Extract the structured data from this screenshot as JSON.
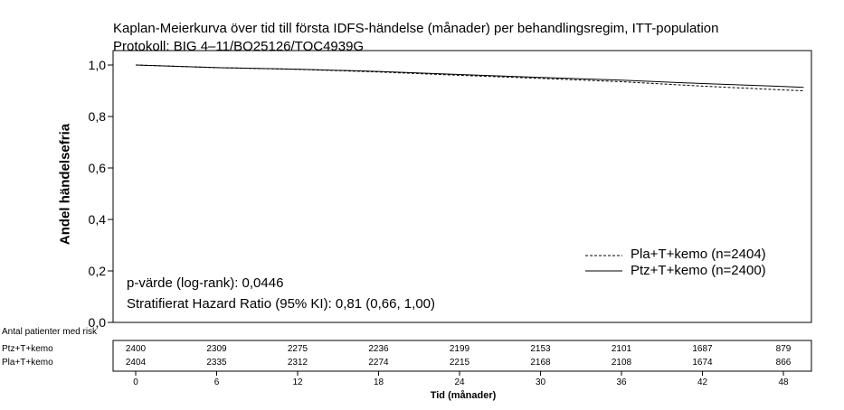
{
  "chart_data": {
    "type": "line",
    "title": "Kaplan-Meierkurva över tid till första IDFS-händelse (månader) per behandlingsregim, ITT-population",
    "subtitle": "Protokoll: BIG 4–11/BO25126/TOC4939G",
    "ylabel": "Andel händelsefria",
    "xlabel": "Tid (månader)",
    "ylim": [
      0,
      1.0
    ],
    "xlim": [
      0,
      48
    ],
    "yticks": [
      "1,0",
      "0,8",
      "0,6",
      "0,4",
      "0,2",
      "0,0"
    ],
    "xticks": [
      "0",
      "6",
      "12",
      "18",
      "24",
      "30",
      "36",
      "42",
      "48"
    ],
    "legend_placement": "bottom-right",
    "series": [
      {
        "name": "Pla+T+kemo (n=2404)",
        "style": "dashed",
        "x": [
          0,
          6,
          12,
          18,
          24,
          30,
          36,
          42,
          48,
          49.5
        ],
        "y": [
          1.0,
          0.99,
          0.983,
          0.973,
          0.96,
          0.948,
          0.935,
          0.918,
          0.903,
          0.9
        ]
      },
      {
        "name": "Ptz+T+kemo (n=2400)",
        "style": "solid",
        "x": [
          0,
          6,
          12,
          18,
          24,
          30,
          36,
          42,
          48,
          49.5
        ],
        "y": [
          1.0,
          0.99,
          0.984,
          0.975,
          0.963,
          0.952,
          0.941,
          0.928,
          0.917,
          0.913
        ]
      }
    ],
    "annotations": [
      "p-värde (log-rank): 0,0446",
      "Stratifierat Hazard Ratio (95% KI): 0,81 (0,66, 1,00)"
    ],
    "risk_table": {
      "header": "Antal patienter med risk",
      "rows": [
        {
          "label": "Ptz+T+kemo",
          "values": [
            "2400",
            "2309",
            "2275",
            "2236",
            "2199",
            "2153",
            "2101",
            "1687",
            "879"
          ]
        },
        {
          "label": "Pla+T+kemo",
          "values": [
            "2404",
            "2335",
            "2312",
            "2274",
            "2215",
            "2168",
            "2108",
            "1674",
            "866"
          ]
        }
      ]
    }
  }
}
